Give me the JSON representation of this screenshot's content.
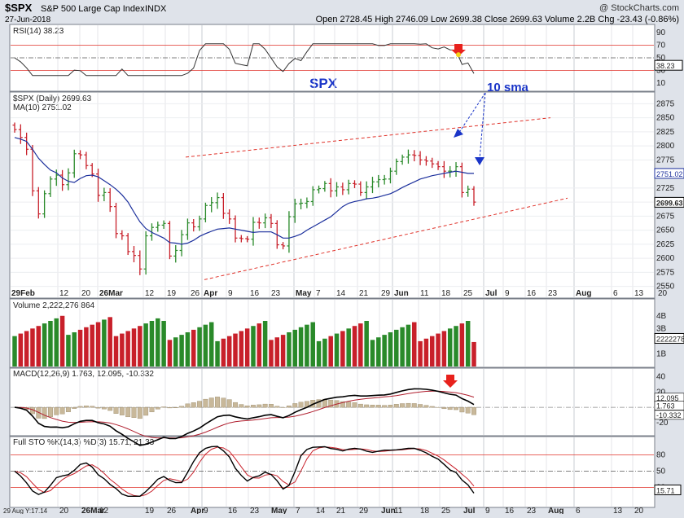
{
  "header": {
    "symbol": "$SPX",
    "name": "S&P 500 Large Cap Index",
    "exchange": "INDX",
    "date": "27-Jun-2018",
    "watermark": "@ StockCharts.com",
    "ohlc": "Open 2728.45  High 2746.09  Low 2699.38  Close 2699.63  Volume 2.2B  Chg -23.43 (-0.86%)"
  },
  "rsi_panel": {
    "title": "RSI(14) 38.23",
    "ticks": [
      "90",
      "70",
      "50",
      "30",
      "10"
    ],
    "last_label": "38.23"
  },
  "price_panel": {
    "title": "$SPX (Daily) 2699.63",
    "ma_title": "MA(10) 2751.02",
    "annotation_main": "SPX",
    "annotation_sma": "10 sma",
    "ticks": [
      "2875",
      "2850",
      "2825",
      "2800",
      "2775",
      "2725",
      "2700",
      "2675",
      "2650",
      "2625",
      "2600",
      "2575",
      "2550"
    ],
    "price_label": "2699.63",
    "ma_label": "2751.02"
  },
  "x_axis": {
    "labels": [
      "29Feb",
      "12",
      "20",
      "26Mar",
      "12",
      "19",
      "26",
      "Apr",
      "9",
      "16",
      "23",
      "May",
      "7",
      "14",
      "21",
      "29",
      "Jun",
      "11",
      "18",
      "25",
      "Jul",
      "9",
      "16",
      "23",
      "Aug",
      "6",
      "13",
      "20"
    ],
    "bottom_labels": [
      "29 Aug Y:17.14",
      "20",
      "26Mar",
      "12",
      "19",
      "26",
      "Apr",
      "9",
      "16",
      "23",
      "May",
      "7",
      "14",
      "21",
      "29",
      "Jun",
      "11",
      "18",
      "25",
      "Jul",
      "9",
      "16",
      "23",
      "Aug",
      "6",
      "13",
      "20"
    ]
  },
  "volume_panel": {
    "title": "Volume 2,222,276,864",
    "ticks": [
      "4B",
      "3B",
      "1B"
    ],
    "last_label": "2222278"
  },
  "macd_panel": {
    "title": "MACD(12,26,9) 1.763, 12.095, -10.332",
    "ticks": [
      "40",
      "20",
      "0",
      "-20"
    ],
    "labels": [
      "12.095",
      "1.763",
      "-10.332"
    ]
  },
  "sto_panel": {
    "title": "Full STO %K(14,3) %D(3) 15.71, 21.33",
    "ticks": [
      "80",
      "50",
      "20"
    ],
    "last_label": "15.71"
  },
  "colors": {
    "up": "#2a8a2a",
    "down": "#c8202a",
    "ma": "#1b2f9c",
    "channel": "#e0322a",
    "annot": "#1a35c8",
    "arrow_red": "#e8211c"
  },
  "chart_data": {
    "type": "line",
    "title": "$SPX S&P 500 Large Cap Index",
    "series": [
      {
        "name": "$SPX (Daily)",
        "values": [
          2829,
          2815,
          2794,
          2720,
          2679,
          2715,
          2741,
          2748,
          2731,
          2752,
          2786,
          2784,
          2765,
          2750,
          2712,
          2717,
          2692,
          2644,
          2640,
          2612,
          2605,
          2581,
          2640,
          2655,
          2659,
          2662,
          2604,
          2614,
          2642,
          2663,
          2656,
          2670,
          2694,
          2699,
          2708,
          2680,
          2670,
          2636,
          2635,
          2634,
          2664,
          2663,
          2672,
          2662,
          2624,
          2622,
          2674,
          2697,
          2698,
          2701,
          2722,
          2724,
          2733,
          2720,
          2727,
          2722,
          2733,
          2732,
          2717,
          2727,
          2736,
          2740,
          2741,
          2755,
          2772,
          2780,
          2784,
          2783,
          2775,
          2773,
          2768,
          2763,
          2755,
          2755,
          2763,
          2717,
          2723,
          2700
        ]
      },
      {
        "name": "MA(10)",
        "values": [
          2815,
          2812,
          2808,
          2794,
          2778,
          2767,
          2757,
          2752,
          2743,
          2737,
          2735,
          2742,
          2747,
          2748,
          2745,
          2738,
          2731,
          2723,
          2713,
          2700,
          2682,
          2665,
          2653,
          2646,
          2641,
          2636,
          2628,
          2627,
          2625,
          2627,
          2632,
          2639,
          2644,
          2648,
          2652,
          2653,
          2654,
          2652,
          2650,
          2648,
          2646,
          2647,
          2647,
          2647,
          2642,
          2636,
          2636,
          2639,
          2643,
          2650,
          2656,
          2662,
          2668,
          2674,
          2683,
          2692,
          2698,
          2701,
          2703,
          2706,
          2707,
          2709,
          2712,
          2715,
          2720,
          2726,
          2731,
          2736,
          2741,
          2744,
          2747,
          2749,
          2751,
          2753,
          2755,
          2753,
          2751,
          2751
        ]
      }
    ],
    "ylim": [
      2535,
      2890
    ],
    "annotations": [
      "SPX",
      "10 sma"
    ]
  }
}
